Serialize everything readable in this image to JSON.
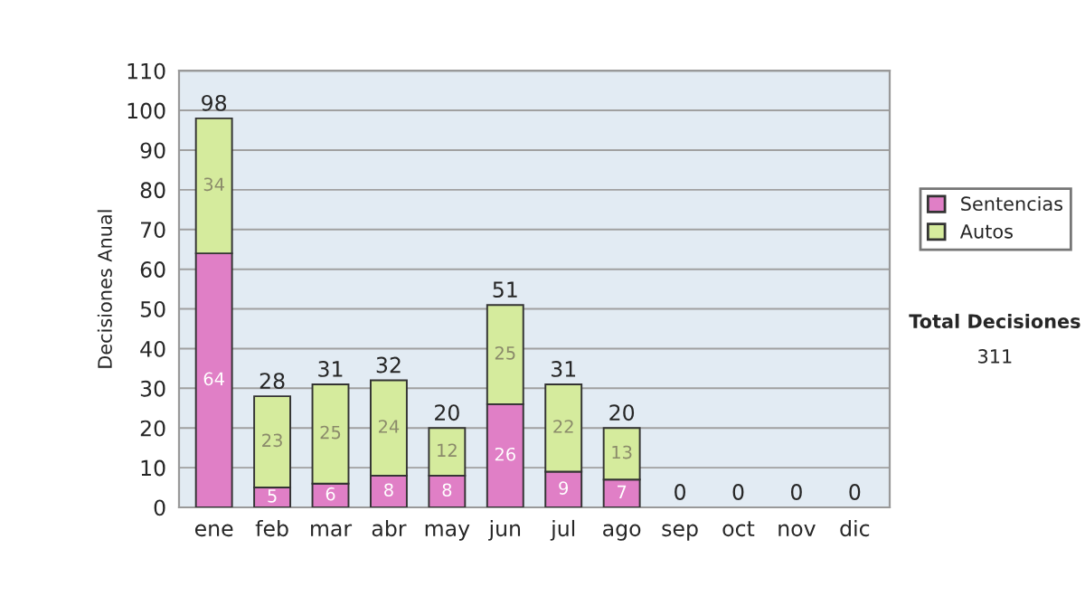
{
  "chart_data": {
    "type": "bar",
    "stacked": true,
    "ylabel": "Decisiones Anual",
    "categories": [
      "ene",
      "feb",
      "mar",
      "abr",
      "may",
      "jun",
      "jul",
      "ago",
      "sep",
      "oct",
      "nov",
      "dic"
    ],
    "series": [
      {
        "name": "Sentencias",
        "color": "#e07fc6",
        "values": [
          64,
          5,
          6,
          8,
          8,
          26,
          9,
          7,
          0,
          0,
          0,
          0
        ],
        "value_labels": [
          "64",
          "5",
          "6",
          "8",
          "8",
          "26",
          "9",
          "7",
          null,
          null,
          null,
          null
        ]
      },
      {
        "name": "Autos",
        "color": "#d5eb9d",
        "values": [
          34,
          23,
          25,
          24,
          12,
          25,
          22,
          13,
          0,
          0,
          0,
          0
        ],
        "value_labels": [
          "34",
          "23",
          "25",
          "24",
          "12",
          "25",
          "22",
          "13",
          null,
          null,
          null,
          null
        ]
      }
    ],
    "totals": [
      "98",
      "28",
      "31",
      "32",
      "20",
      "51",
      "31",
      "20",
      "0",
      "0",
      "0",
      "0"
    ],
    "ylim": [
      0,
      110
    ],
    "yticks": [
      0,
      10,
      20,
      30,
      40,
      50,
      60,
      70,
      80,
      90,
      100,
      110
    ],
    "grid": "y",
    "legend": "right",
    "annotations": [
      "Total Decisiones",
      "311"
    ]
  }
}
